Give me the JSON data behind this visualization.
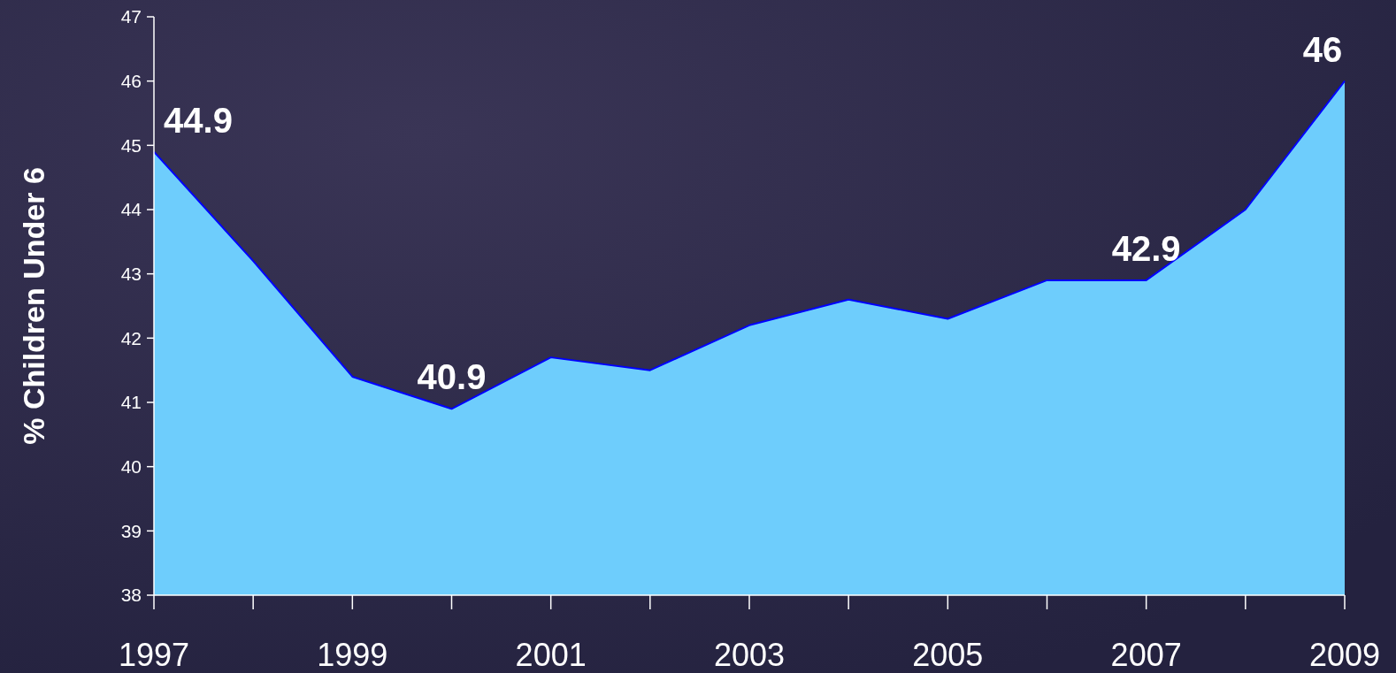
{
  "chart_data": {
    "type": "area",
    "ylabel": "% Children Under 6",
    "x": [
      1997,
      1998,
      1999,
      2000,
      2001,
      2002,
      2003,
      2004,
      2005,
      2006,
      2007,
      2008,
      2009
    ],
    "series": [
      {
        "color": "#6ecdfc",
        "values": [
          44.9,
          43.2,
          41.4,
          40.9,
          41.7,
          41.5,
          42.2,
          42.6,
          42.3,
          42.9,
          42.9,
          44.0,
          46
        ],
        "value_labels": [
          "44.9",
          null,
          null,
          "40.9",
          null,
          null,
          null,
          null,
          null,
          null,
          "42.9",
          null,
          "46"
        ]
      }
    ],
    "xlim": [
      1997,
      2009
    ],
    "xticks": [
      1997,
      {
        "value": 1998,
        "label": null
      },
      1999,
      {
        "value": 2000,
        "label": null
      },
      2001,
      {
        "value": 2002,
        "label": null
      },
      2003,
      {
        "value": 2004,
        "label": null
      },
      2005,
      {
        "value": 2006,
        "label": null
      },
      2007,
      {
        "value": 2008,
        "label": null
      },
      2009
    ],
    "ylim": [
      38,
      47
    ],
    "yticks": [
      38,
      39,
      40,
      41,
      42,
      43,
      44,
      45,
      46,
      47
    ],
    "grid": false
  }
}
